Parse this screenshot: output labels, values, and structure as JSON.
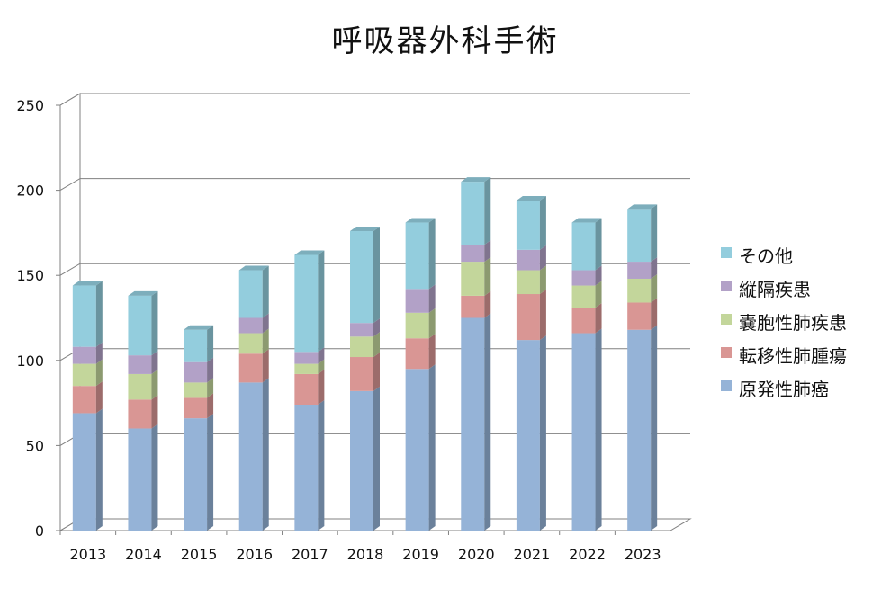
{
  "chart_data": {
    "type": "bar",
    "stacked": true,
    "three_d": true,
    "title": "呼吸器外科手術",
    "categories": [
      "2013",
      "2014",
      "2015",
      "2016",
      "2017",
      "2018",
      "2019",
      "2020",
      "2021",
      "2022",
      "2023"
    ],
    "ylim": [
      0,
      250
    ],
    "yticks": [
      "0",
      "50",
      "100",
      "150",
      "200",
      "250"
    ],
    "grid": true,
    "legend_position": "right",
    "series": [
      {
        "name": "原発性肺癌",
        "color": "#95b3d7",
        "values": [
          69,
          60,
          66,
          87,
          74,
          82,
          95,
          125,
          112,
          116,
          118
        ]
      },
      {
        "name": "転移性肺腫瘍",
        "color": "#d99694",
        "values": [
          16,
          17,
          12,
          17,
          18,
          20,
          18,
          13,
          27,
          15,
          16
        ]
      },
      {
        "name": "嚢胞性肺疾患",
        "color": "#c3d69b",
        "values": [
          13,
          15,
          9,
          12,
          6,
          12,
          15,
          20,
          14,
          13,
          14
        ]
      },
      {
        "name": "縦隔疾患",
        "color": "#b2a1c7",
        "values": [
          10,
          11,
          12,
          9,
          7,
          8,
          14,
          10,
          12,
          9,
          10
        ]
      },
      {
        "name": "その他",
        "color": "#93cddd",
        "values": [
          36,
          35,
          19,
          28,
          57,
          54,
          39,
          37,
          29,
          28,
          31
        ]
      }
    ]
  }
}
